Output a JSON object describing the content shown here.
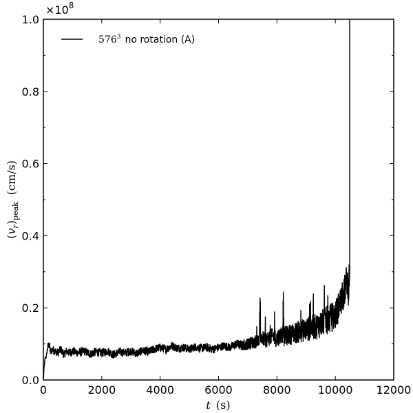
{
  "chart_data": {
    "type": "line",
    "title": "",
    "xlabel": "t (s)",
    "ylabel": "(v_r)_peak (cm/s)",
    "y_multiplier_label": "×10^8",
    "y_multiplier": 100000000,
    "xlim": [
      0,
      12000
    ],
    "ylim": [
      0.0,
      1.0
    ],
    "x_ticks": [
      0,
      2000,
      4000,
      6000,
      8000,
      10000,
      12000
    ],
    "x_tick_labels": [
      "0",
      "2000",
      "4000",
      "6000",
      "8000",
      "10000",
      "12000"
    ],
    "y_ticks": [
      0.0,
      0.2,
      0.4,
      0.6,
      0.8,
      1.0
    ],
    "y_tick_labels": [
      "0.0",
      "0.2",
      "0.4",
      "0.6",
      "0.8",
      "1.0"
    ],
    "y_minor_ticks": [
      0.1,
      0.3,
      0.5,
      0.7,
      0.9
    ],
    "x_minor_ticks": [],
    "grid": false,
    "legend_position": "upper left",
    "series": [
      {
        "name": "576^3 no rotation (A)",
        "legend_base": "576",
        "legend_exp": "3",
        "legend_suffix": "no rotation (A)",
        "color": "#000000",
        "x": [
          0,
          30,
          60,
          100,
          150,
          200,
          250,
          300,
          400,
          500,
          600,
          700,
          800,
          900,
          1000,
          1200,
          1400,
          1600,
          1800,
          2000,
          2200,
          2400,
          2600,
          2800,
          3000,
          3200,
          3400,
          3600,
          3800,
          4000,
          4200,
          4400,
          4600,
          4800,
          5000,
          5200,
          5400,
          5600,
          5800,
          6000,
          6200,
          6400,
          6600,
          6800,
          7000,
          7200,
          7400,
          7420,
          7440,
          7600,
          7800,
          8000,
          8200,
          8220,
          8240,
          8400,
          8600,
          8800,
          9000,
          9200,
          9400,
          9600,
          9800,
          10000,
          10100,
          10200,
          10300,
          10400,
          10450,
          10480,
          10490
        ],
        "values": [
          0.0,
          0.04,
          0.06,
          0.065,
          0.09,
          0.1,
          0.075,
          0.085,
          0.08,
          0.075,
          0.085,
          0.07,
          0.08,
          0.075,
          0.08,
          0.075,
          0.08,
          0.072,
          0.078,
          0.075,
          0.08,
          0.07,
          0.078,
          0.075,
          0.08,
          0.073,
          0.082,
          0.078,
          0.085,
          0.09,
          0.085,
          0.095,
          0.088,
          0.09,
          0.085,
          0.092,
          0.088,
          0.09,
          0.085,
          0.09,
          0.095,
          0.09,
          0.1,
          0.095,
          0.1,
          0.105,
          0.11,
          0.22,
          0.12,
          0.11,
          0.12,
          0.115,
          0.13,
          0.22,
          0.12,
          0.125,
          0.13,
          0.135,
          0.14,
          0.145,
          0.15,
          0.16,
          0.17,
          0.18,
          0.2,
          0.22,
          0.24,
          0.28,
          0.25,
          0.3,
          1.0
        ]
      }
    ],
    "annotations": []
  }
}
